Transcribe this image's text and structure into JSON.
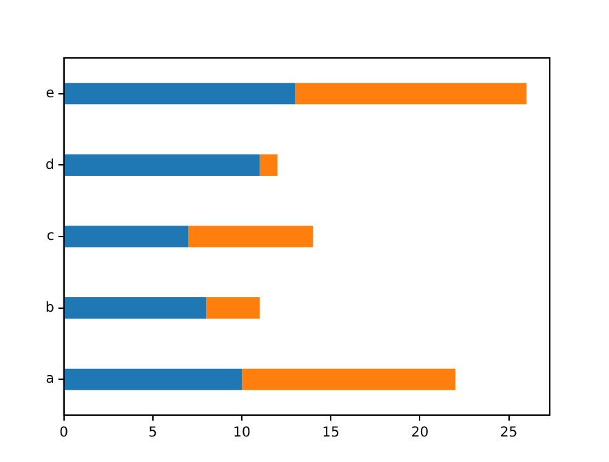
{
  "chart_data": {
    "type": "bar",
    "orientation": "horizontal",
    "stacked": true,
    "categories": [
      "e",
      "d",
      "c",
      "b",
      "a"
    ],
    "series": [
      {
        "color": "#1f77b4",
        "values": [
          13,
          11,
          7,
          8,
          10
        ]
      },
      {
        "color": "#ff7f0e",
        "values": [
          13,
          1,
          7,
          3,
          12
        ]
      }
    ],
    "xlim": [
      0,
      27.3
    ],
    "xticks": [
      0,
      5,
      10,
      15,
      20,
      25
    ],
    "grid": false,
    "legend": false
  }
}
